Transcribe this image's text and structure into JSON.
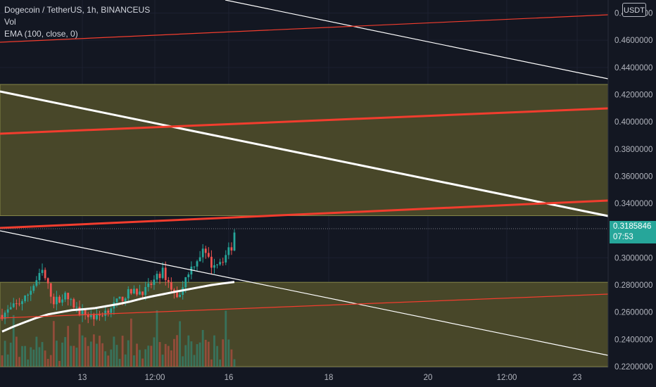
{
  "legend": {
    "symbol": "Dogecoin / TetherUS, 1h, BINANCEUS",
    "volume": "Vol",
    "ema": "EMA (100, close, 0)"
  },
  "currency_tag": "USDT",
  "current_price": {
    "value": "0.3185846",
    "countdown": "07:53"
  },
  "colors": {
    "background": "#131722",
    "zone_fill": "#4b4a2a",
    "zone_border": "#8a8a4a",
    "up": "#26a69a",
    "down": "#ef5350",
    "trend_white": "#ffffff",
    "trend_red": "#f23d2e"
  },
  "chart_data": {
    "type": "candlestick",
    "y_axis": {
      "range": [
        0.2195,
        0.487
      ],
      "ticks": [
        "0.4800000",
        "0.4600000",
        "0.4400000",
        "0.4200000",
        "0.4000000",
        "0.3800000",
        "0.3600000",
        "0.3400000",
        "0.3000000",
        "0.2800000",
        "0.2600000",
        "0.2400000",
        "0.2200000"
      ]
    },
    "x_axis": {
      "ticks": [
        "13",
        "12:00",
        "16",
        "18",
        "20",
        "12:00",
        "23"
      ]
    },
    "zones": [
      {
        "from": 0.282,
        "to": 0.22
      },
      {
        "from": 0.4275,
        "to": 0.331
      }
    ],
    "ema_100": [
      0.2458,
      0.2495,
      0.2528,
      0.256,
      0.2585,
      0.26,
      0.2615,
      0.2622,
      0.263,
      0.2645,
      0.266,
      0.2678,
      0.27,
      0.2718,
      0.2735,
      0.2752,
      0.2768,
      0.2784,
      0.28,
      0.2812,
      0.2822
    ],
    "last_price": 0.3185846
  }
}
